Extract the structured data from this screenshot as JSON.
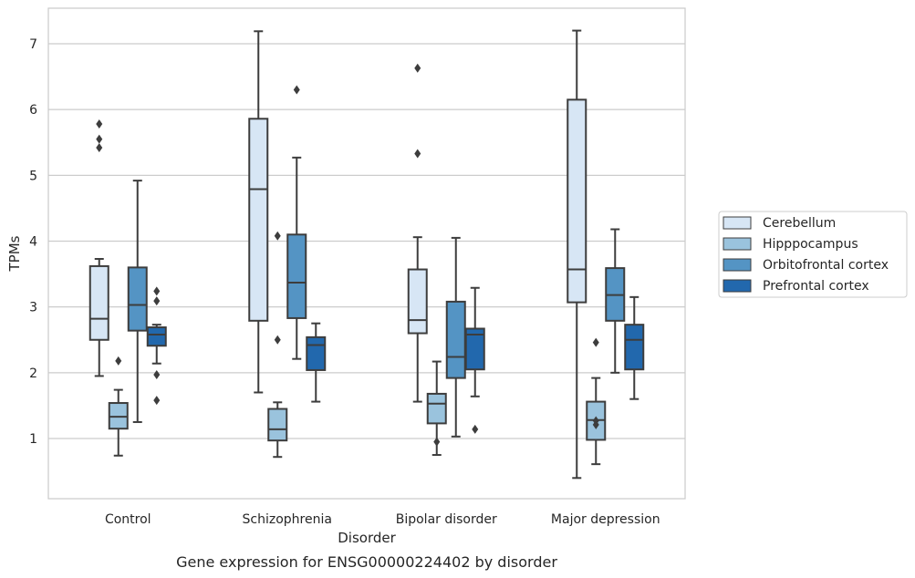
{
  "chart_data": {
    "type": "box",
    "title": "Gene expression for ENSG00000224402 by disorder",
    "xlabel": "Disorder",
    "ylabel": "TPMs",
    "ylim": [
      0.05,
      7.55
    ],
    "yticks": [
      1,
      2,
      3,
      4,
      5,
      6,
      7
    ],
    "grid": "horizontal",
    "legend_position": "right",
    "categories": [
      "Control",
      "Schizophrenia",
      "Bipolar disorder",
      "Major depression"
    ],
    "series": [
      {
        "name": "Cerebellum",
        "color": "#d7e6f5",
        "boxes": [
          {
            "whislo": 1.95,
            "q1": 2.5,
            "med": 2.82,
            "q3": 3.62,
            "whishi": 3.73,
            "fliers": [
              5.78,
              5.55,
              5.42
            ]
          },
          {
            "whislo": 1.7,
            "q1": 2.79,
            "med": 4.79,
            "q3": 5.86,
            "whishi": 7.19,
            "fliers": []
          },
          {
            "whislo": 1.56,
            "q1": 2.6,
            "med": 2.8,
            "q3": 3.57,
            "whishi": 4.06,
            "fliers": [
              6.63,
              5.33
            ]
          },
          {
            "whislo": 0.4,
            "q1": 3.07,
            "med": 3.57,
            "q3": 6.15,
            "whishi": 7.2,
            "fliers": []
          }
        ]
      },
      {
        "name": "Hipppocampus",
        "color": "#9ac3dd",
        "boxes": [
          {
            "whislo": 0.74,
            "q1": 1.15,
            "med": 1.33,
            "q3": 1.54,
            "whishi": 1.74,
            "fliers": [
              2.18
            ]
          },
          {
            "whislo": 0.72,
            "q1": 0.97,
            "med": 1.14,
            "q3": 1.45,
            "whishi": 1.55,
            "fliers": [
              4.08,
              2.5
            ]
          },
          {
            "whislo": 0.75,
            "q1": 1.23,
            "med": 1.53,
            "q3": 1.68,
            "whishi": 2.17,
            "fliers": [
              0.95
            ]
          },
          {
            "whislo": 0.61,
            "q1": 0.98,
            "med": 1.28,
            "q3": 1.56,
            "whishi": 1.92,
            "fliers": [
              2.46,
              1.27,
              1.21
            ]
          }
        ]
      },
      {
        "name": "Orbitofrontal cortex",
        "color": "#5494c4",
        "boxes": [
          {
            "whislo": 1.25,
            "q1": 2.64,
            "med": 3.03,
            "q3": 3.6,
            "whishi": 4.92,
            "fliers": []
          },
          {
            "whislo": 2.21,
            "q1": 2.83,
            "med": 3.37,
            "q3": 4.1,
            "whishi": 5.27,
            "fliers": [
              6.3
            ]
          },
          {
            "whislo": 1.03,
            "q1": 1.92,
            "med": 2.24,
            "q3": 3.08,
            "whishi": 4.05,
            "fliers": []
          },
          {
            "whislo": 2.0,
            "q1": 2.79,
            "med": 3.18,
            "q3": 3.59,
            "whishi": 4.18,
            "fliers": []
          }
        ]
      },
      {
        "name": "Prefrontal cortex",
        "color": "#2268ad",
        "boxes": [
          {
            "whislo": 2.14,
            "q1": 2.41,
            "med": 2.58,
            "q3": 2.69,
            "whishi": 2.73,
            "fliers": [
              3.24,
              3.09,
              1.97,
              1.58
            ]
          },
          {
            "whislo": 1.56,
            "q1": 2.04,
            "med": 2.42,
            "q3": 2.54,
            "whishi": 2.75,
            "fliers": []
          },
          {
            "whislo": 1.64,
            "q1": 2.05,
            "med": 2.58,
            "q3": 2.67,
            "whishi": 3.29,
            "fliers": [
              1.14
            ]
          },
          {
            "whislo": 1.6,
            "q1": 2.05,
            "med": 2.5,
            "q3": 2.73,
            "whishi": 3.15,
            "fliers": []
          }
        ]
      }
    ]
  }
}
